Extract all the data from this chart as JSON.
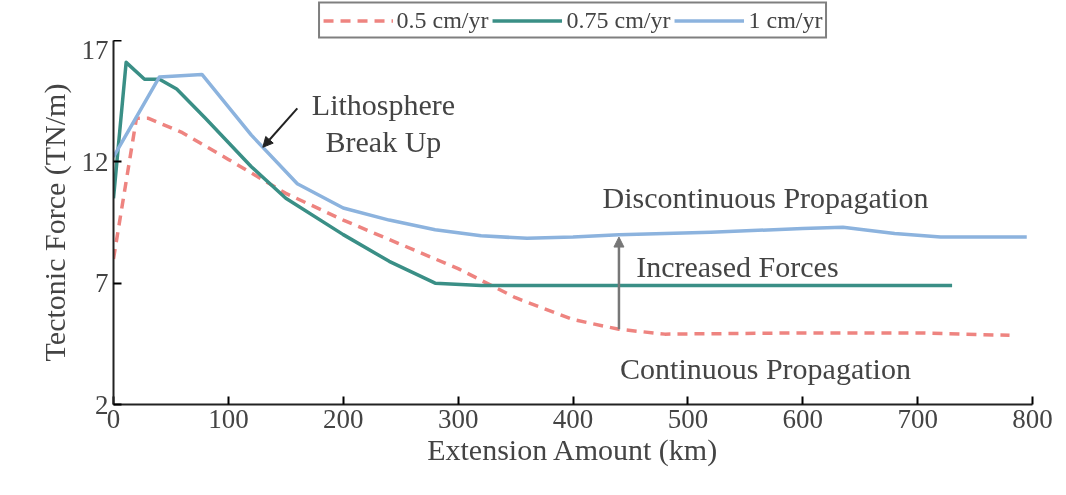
{
  "chart_data": {
    "type": "line",
    "xlabel": "Extension Amount (km)",
    "ylabel": "Tectonic Force (TN/m)",
    "xlim": [
      0,
      800
    ],
    "xticks": [
      0,
      100,
      200,
      300,
      400,
      500,
      600,
      700,
      800
    ],
    "ylim": [
      2,
      17
    ],
    "yticks": [
      2,
      7,
      12,
      17
    ],
    "grid": false,
    "legend": "top",
    "series": [
      {
        "name": "0.5 cm/yr",
        "color": "#ee8480",
        "line_style": "dashed",
        "x": [
          0,
          20,
          30,
          60,
          100,
          150,
          200,
          250,
          300,
          350,
          400,
          440,
          480,
          600,
          700,
          780
        ],
        "values": [
          8.0,
          13.8,
          13.8,
          13.2,
          12.1,
          10.7,
          9.6,
          8.6,
          7.6,
          6.4,
          5.5,
          5.1,
          4.9,
          4.95,
          4.95,
          4.85
        ]
      },
      {
        "name": "0.75 cm/yr",
        "color": "#3a8f86",
        "line_style": "solid",
        "x": [
          0,
          11,
          27,
          40,
          55,
          80,
          120,
          150,
          200,
          240,
          280,
          320,
          400,
          500,
          600,
          730
        ],
        "values": [
          10.5,
          16.1,
          15.4,
          15.4,
          15.0,
          13.8,
          11.8,
          10.5,
          9.0,
          7.9,
          7.0,
          6.9,
          6.9,
          6.9,
          6.9,
          6.9
        ]
      },
      {
        "name": "1 cm/yr",
        "color": "#8cb3de",
        "line_style": "solid",
        "x": [
          0,
          40,
          77,
          120,
          160,
          200,
          240,
          280,
          320,
          360,
          400,
          440,
          520,
          600,
          635,
          680,
          720,
          795
        ],
        "values": [
          12.2,
          15.5,
          15.6,
          13.1,
          11.1,
          10.1,
          9.6,
          9.2,
          8.95,
          8.85,
          8.9,
          9.0,
          9.1,
          9.25,
          9.3,
          9.05,
          8.9,
          8.9
        ]
      }
    ],
    "annotations": [
      {
        "text": "Lithosphere\nBreak Up",
        "x": 130,
        "y": 12.6
      },
      {
        "text": "Increased Forces",
        "x": 440,
        "y": 8.9
      },
      "Discontinuous Propagation",
      "Continuous Propagation"
    ]
  }
}
